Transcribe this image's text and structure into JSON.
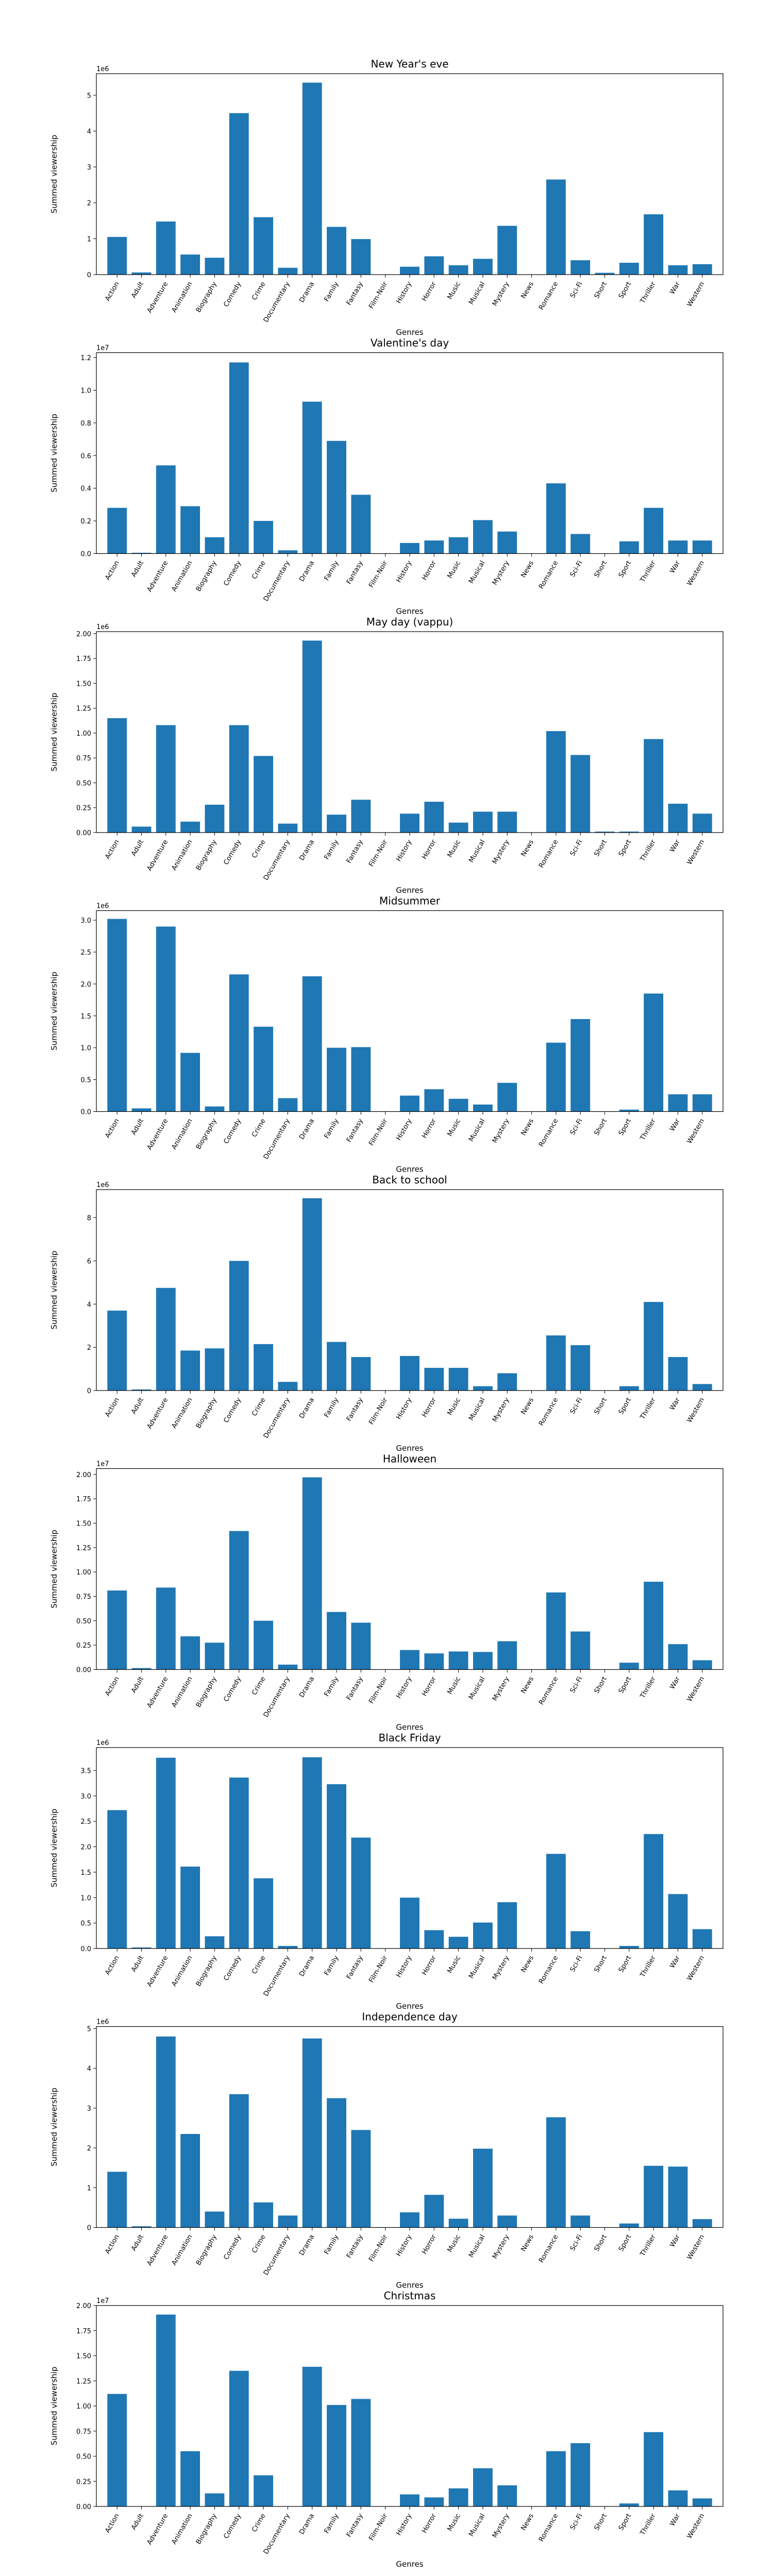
{
  "shared": {
    "categories": [
      "Action",
      "Adult",
      "Adventure",
      "Animation",
      "Biography",
      "Comedy",
      "Crime",
      "Documentary",
      "Drama",
      "Family",
      "Fantasy",
      "Film-Noir",
      "History",
      "Horror",
      "Music",
      "Musical",
      "Mystery",
      "News",
      "Romance",
      "Sci-Fi",
      "Short",
      "Sport",
      "Thriller",
      "War",
      "Western"
    ],
    "xlabel": "Genres",
    "ylabel": "Summed viewership",
    "bar_color": "#1f77b4"
  },
  "chart_data": [
    {
      "type": "bar",
      "title": "New Year's eve",
      "xlabel": "Genres",
      "ylabel": "Summed viewership",
      "multiplier": "1e6",
      "ylim": [
        0,
        5600000
      ],
      "yticks": [
        0,
        1000000,
        2000000,
        3000000,
        4000000,
        5000000
      ],
      "ytick_labels": [
        "0",
        "1",
        "2",
        "3",
        "4",
        "5"
      ],
      "values": [
        1050000,
        60000,
        1480000,
        560000,
        470000,
        4500000,
        1600000,
        190000,
        5350000,
        1330000,
        990000,
        0,
        220000,
        510000,
        260000,
        440000,
        1360000,
        0,
        2650000,
        400000,
        50000,
        330000,
        1680000,
        260000,
        290000
      ]
    },
    {
      "type": "bar",
      "title": "Valentine's day",
      "xlabel": "Genres",
      "ylabel": "Summed viewership",
      "multiplier": "1e7",
      "ylim": [
        0,
        12300000
      ],
      "yticks": [
        0,
        2000000,
        4000000,
        6000000,
        8000000,
        10000000,
        12000000
      ],
      "ytick_labels": [
        "0.0",
        "0.2",
        "0.4",
        "0.6",
        "0.8",
        "1.0",
        "1.2"
      ],
      "values": [
        2800000,
        50000,
        5400000,
        2900000,
        1000000,
        11700000,
        2000000,
        200000,
        9300000,
        6900000,
        3600000,
        0,
        650000,
        800000,
        1000000,
        2050000,
        1350000,
        0,
        4300000,
        1200000,
        0,
        750000,
        2800000,
        800000,
        800000
      ]
    },
    {
      "type": "bar",
      "title": "May day (vappu)",
      "xlabel": "Genres",
      "ylabel": "Summed viewership",
      "multiplier": "1e6",
      "ylim": [
        0,
        2020000
      ],
      "yticks": [
        0,
        250000,
        500000,
        750000,
        1000000,
        1250000,
        1500000,
        1750000,
        2000000
      ],
      "ytick_labels": [
        "0.00",
        "0.25",
        "0.50",
        "0.75",
        "1.00",
        "1.25",
        "1.50",
        "1.75",
        "2.00"
      ],
      "values": [
        1150000,
        60000,
        1080000,
        110000,
        280000,
        1080000,
        770000,
        90000,
        1930000,
        180000,
        330000,
        0,
        190000,
        310000,
        100000,
        210000,
        210000,
        0,
        1020000,
        780000,
        10000,
        10000,
        940000,
        290000,
        190000
      ]
    },
    {
      "type": "bar",
      "title": "Midsummer",
      "xlabel": "Genres",
      "ylabel": "Summed viewership",
      "multiplier": "1e6",
      "ylim": [
        0,
        3150000
      ],
      "yticks": [
        0,
        500000,
        1000000,
        1500000,
        2000000,
        2500000,
        3000000
      ],
      "ytick_labels": [
        "0.0",
        "0.5",
        "1.0",
        "1.5",
        "2.0",
        "2.5",
        "3.0"
      ],
      "values": [
        3020000,
        50000,
        2900000,
        920000,
        80000,
        2150000,
        1330000,
        210000,
        2120000,
        1000000,
        1010000,
        0,
        250000,
        350000,
        200000,
        110000,
        450000,
        0,
        1080000,
        1450000,
        0,
        30000,
        1850000,
        270000,
        270000
      ]
    },
    {
      "type": "bar",
      "title": "Back to school",
      "xlabel": "Genres",
      "ylabel": "Summed viewership",
      "multiplier": "1e6",
      "ylim": [
        0,
        9300000
      ],
      "yticks": [
        0,
        2000000,
        4000000,
        6000000,
        8000000
      ],
      "ytick_labels": [
        "0",
        "2",
        "4",
        "6",
        "8"
      ],
      "values": [
        3700000,
        50000,
        4750000,
        1850000,
        1950000,
        6000000,
        2150000,
        400000,
        8900000,
        2250000,
        1550000,
        0,
        1600000,
        1050000,
        1050000,
        200000,
        800000,
        0,
        2550000,
        2100000,
        0,
        200000,
        4100000,
        1550000,
        300000
      ]
    },
    {
      "type": "bar",
      "title": "Halloween",
      "xlabel": "Genres",
      "ylabel": "Summed viewership",
      "multiplier": "1e7",
      "ylim": [
        0,
        20600000
      ],
      "yticks": [
        0,
        2500000,
        5000000,
        7500000,
        10000000,
        12500000,
        15000000,
        17500000,
        20000000
      ],
      "ytick_labels": [
        "0.00",
        "0.25",
        "0.50",
        "0.75",
        "1.00",
        "1.25",
        "1.50",
        "1.75",
        "2.00"
      ],
      "values": [
        8100000,
        150000,
        8400000,
        3400000,
        2750000,
        14200000,
        5000000,
        500000,
        19700000,
        5900000,
        4800000,
        0,
        2000000,
        1650000,
        1850000,
        1800000,
        2900000,
        0,
        7900000,
        3900000,
        0,
        700000,
        9000000,
        2600000,
        950000
      ]
    },
    {
      "type": "bar",
      "title": "Black Friday",
      "xlabel": "Genres",
      "ylabel": "Summed viewership",
      "multiplier": "1e6",
      "ylim": [
        0,
        3950000
      ],
      "yticks": [
        0,
        500000,
        1000000,
        1500000,
        2000000,
        2500000,
        3000000,
        3500000
      ],
      "ytick_labels": [
        "0.0",
        "0.5",
        "1.0",
        "1.5",
        "2.0",
        "2.5",
        "3.0",
        "3.5"
      ],
      "values": [
        2720000,
        20000,
        3750000,
        1610000,
        240000,
        3360000,
        1380000,
        50000,
        3760000,
        3230000,
        2180000,
        0,
        1000000,
        360000,
        230000,
        510000,
        910000,
        0,
        1860000,
        340000,
        0,
        50000,
        2250000,
        1070000,
        380000
      ]
    },
    {
      "type": "bar",
      "title": "Independence day",
      "xlabel": "Genres",
      "ylabel": "Summed viewership",
      "multiplier": "1e6",
      "ylim": [
        0,
        5050000
      ],
      "yticks": [
        0,
        1000000,
        2000000,
        3000000,
        4000000,
        5000000
      ],
      "ytick_labels": [
        "0",
        "1",
        "2",
        "3",
        "4",
        "5"
      ],
      "values": [
        1400000,
        30000,
        4800000,
        2350000,
        400000,
        3350000,
        630000,
        300000,
        4750000,
        3250000,
        2450000,
        0,
        380000,
        820000,
        220000,
        1980000,
        300000,
        0,
        2770000,
        300000,
        0,
        100000,
        1550000,
        1530000,
        210000
      ]
    },
    {
      "type": "bar",
      "title": "Christmas",
      "xlabel": "Genres",
      "ylabel": "Summed viewership",
      "multiplier": "1e7",
      "ylim": [
        0,
        20000000
      ],
      "yticks": [
        0,
        2500000,
        5000000,
        7500000,
        10000000,
        12500000,
        15000000,
        17500000,
        20000000
      ],
      "ytick_labels": [
        "0.00",
        "0.25",
        "0.50",
        "0.75",
        "1.00",
        "1.25",
        "1.50",
        "1.75",
        "2.00"
      ],
      "values": [
        11200000,
        0,
        19100000,
        5500000,
        1300000,
        13500000,
        3100000,
        0,
        13900000,
        10100000,
        10700000,
        0,
        1200000,
        900000,
        1800000,
        3800000,
        2100000,
        0,
        5500000,
        6300000,
        0,
        300000,
        7400000,
        1600000,
        800000
      ]
    }
  ]
}
